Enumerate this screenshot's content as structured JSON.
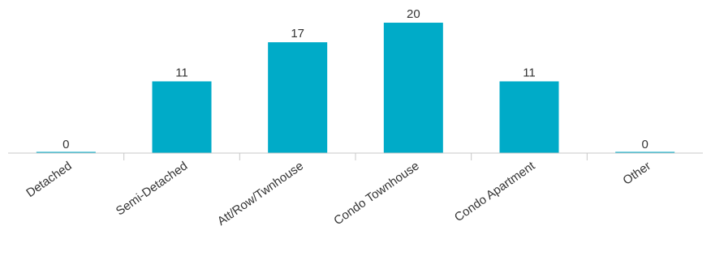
{
  "chart_data": {
    "type": "bar",
    "categories": [
      "Detached",
      "Semi-Detached",
      "Att/Row/Twnhouse",
      "Condo Townhouse",
      "Condo Apartment",
      "Other"
    ],
    "values": [
      0,
      11,
      17,
      20,
      11,
      0
    ],
    "title": "",
    "xlabel": "",
    "ylabel": "",
    "ylim": [
      0,
      20.5
    ],
    "grid": false,
    "legend": "none",
    "bar_color": "#00abc8",
    "axis_color": "#c8c8c8",
    "tick_rotation_deg": -35
  }
}
